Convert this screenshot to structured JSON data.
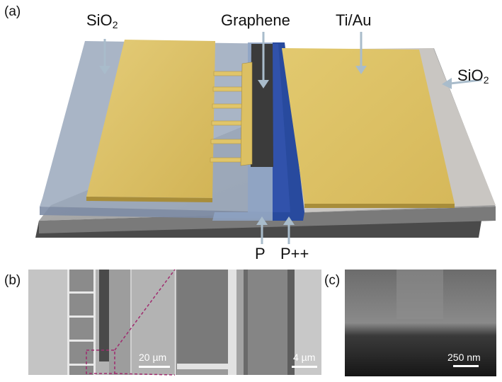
{
  "figure": {
    "panel_a": {
      "tag": "(a)",
      "labels": {
        "sio2_left": "SiO",
        "sio2_left_sub": "2",
        "graphene": "Graphene",
        "tiau": "Ti/Au",
        "sio2_right": "SiO",
        "sio2_right_sub": "2",
        "p": "P",
        "ppp": "P++"
      }
    },
    "panel_b": {
      "tag": "(b)",
      "scale_left": "20 µm",
      "scale_right": "4 µm"
    },
    "panel_c": {
      "tag": "(c)",
      "scale": "250 nm"
    },
    "colors": {
      "gold": "#d9bd62",
      "oxide_blue": "#8fa3bf",
      "p_plus_blue": "#1f3f8f",
      "substrate_gray": "#8f8f8f",
      "graphene_dark": "#3b3b3b"
    }
  }
}
